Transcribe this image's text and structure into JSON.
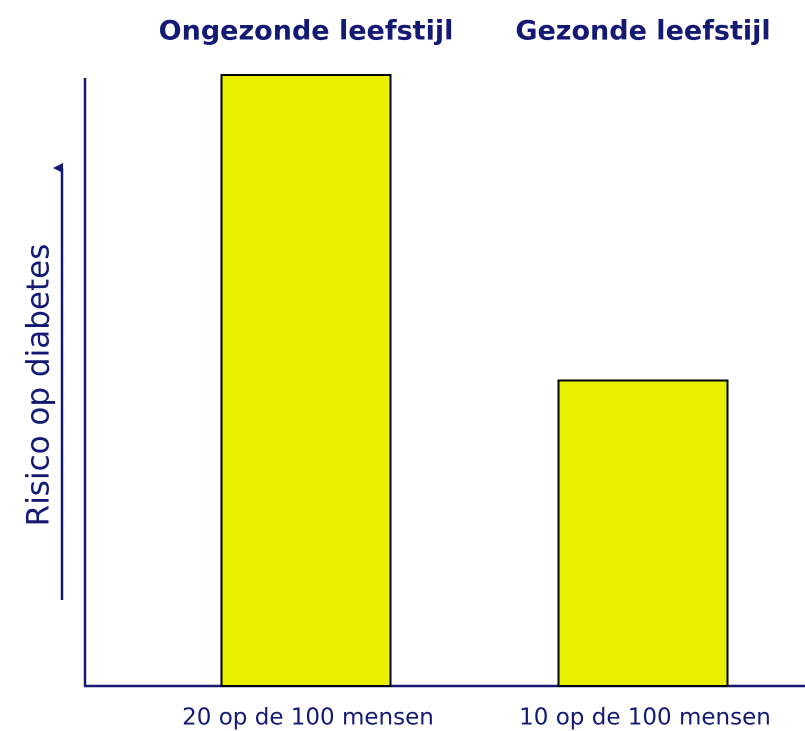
{
  "chart_data": {
    "type": "bar",
    "y_label": "Risico op diabetes",
    "categories": [
      "Ongezonde leefstijl",
      "Gezonde leefstijl"
    ],
    "values": [
      20,
      10
    ],
    "value_labels": [
      "20 op de 100 mensen",
      "10 op de 100 mensen"
    ],
    "color": "#e8f000",
    "ylim": [
      0,
      20
    ]
  }
}
